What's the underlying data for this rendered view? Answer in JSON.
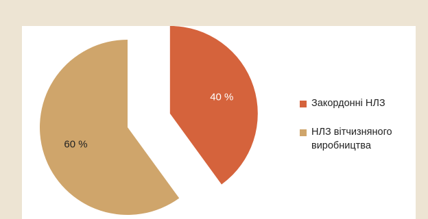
{
  "chart_data": {
    "type": "pie",
    "title": "",
    "slices": [
      {
        "label": "Закордонні НЛЗ",
        "value": 40,
        "value_label": "40 %",
        "color": "#d5633c",
        "exploded": true
      },
      {
        "label": "НЛЗ вітчизняного виробництва",
        "value": 60,
        "value_label": "60 %",
        "color": "#cfa56b",
        "exploded": false
      }
    ],
    "legend": {
      "position": "right",
      "items": [
        {
          "lines": [
            "Закордонні НЛЗ"
          ],
          "color": "#d5633c"
        },
        {
          "lines": [
            "НЛЗ вітчизняного",
            "виробництва"
          ],
          "color": "#cfa56b"
        }
      ]
    }
  },
  "colors": {
    "frame_background": "#ede4d3",
    "panel_background": "#ffffff",
    "label_text_light": "#ffffff",
    "label_text_dark": "#222222"
  }
}
